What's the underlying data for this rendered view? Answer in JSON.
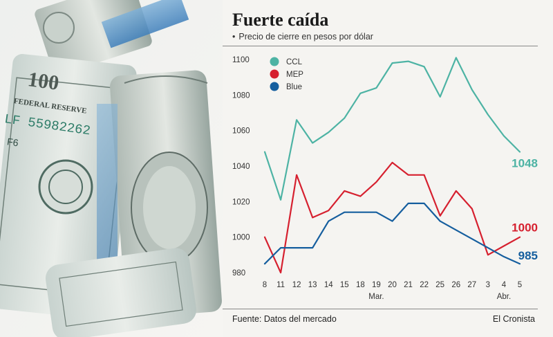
{
  "header": {
    "title": "Fuerte caída",
    "subtitle": "Precio de cierre en pesos por dólar"
  },
  "footer": {
    "source": "Fuente: Datos del mercado",
    "credit": "El Cronista"
  },
  "photo": {
    "bill_denomination": "100",
    "bill_header": "FEDERAL RESERVE",
    "serial": "LF 55982262",
    "seal_letter": "F6"
  },
  "colors": {
    "ccl": "#4db3a4",
    "mep": "#d6202f",
    "blue": "#155e9e",
    "axis": "#333333",
    "grid": "#cfcfcf"
  },
  "chart_data": {
    "type": "line",
    "title": "Fuerte caída",
    "subtitle": "Precio de cierre en pesos por dólar",
    "xlabel": "",
    "ylabel": "",
    "ylim": [
      980,
      1100
    ],
    "yticks": [
      980,
      1000,
      1020,
      1040,
      1060,
      1080,
      1100
    ],
    "categories": [
      "8",
      "11",
      "12",
      "13",
      "14",
      "15",
      "18",
      "19",
      "20",
      "21",
      "22",
      "25",
      "26",
      "27",
      "3",
      "4",
      "5"
    ],
    "month_labels": [
      {
        "label": "Mar.",
        "at": "19"
      },
      {
        "label": "Abr.",
        "at": "4"
      }
    ],
    "legend_position": "top-left",
    "grid": false,
    "series": [
      {
        "name": "CCL",
        "color": "#4db3a4",
        "end_label": "1048",
        "values": [
          1048,
          1021,
          1066,
          1053,
          1059,
          1067,
          1081,
          1084,
          1098,
          1099,
          1096,
          1079,
          1101,
          1083,
          1069,
          1057,
          1048
        ]
      },
      {
        "name": "MEP",
        "color": "#d6202f",
        "end_label": "1000",
        "values": [
          1000,
          980,
          1035,
          1011,
          1015,
          1026,
          1023,
          1031,
          1042,
          1035,
          1035,
          1012,
          1026,
          1016,
          990,
          995,
          1000
        ]
      },
      {
        "name": "Blue",
        "color": "#155e9e",
        "end_label": "985",
        "values": [
          985,
          994,
          994,
          994,
          1009,
          1014,
          1014,
          1014,
          1009,
          1019,
          1019,
          1009,
          1004,
          999,
          994,
          989,
          985
        ]
      }
    ]
  }
}
